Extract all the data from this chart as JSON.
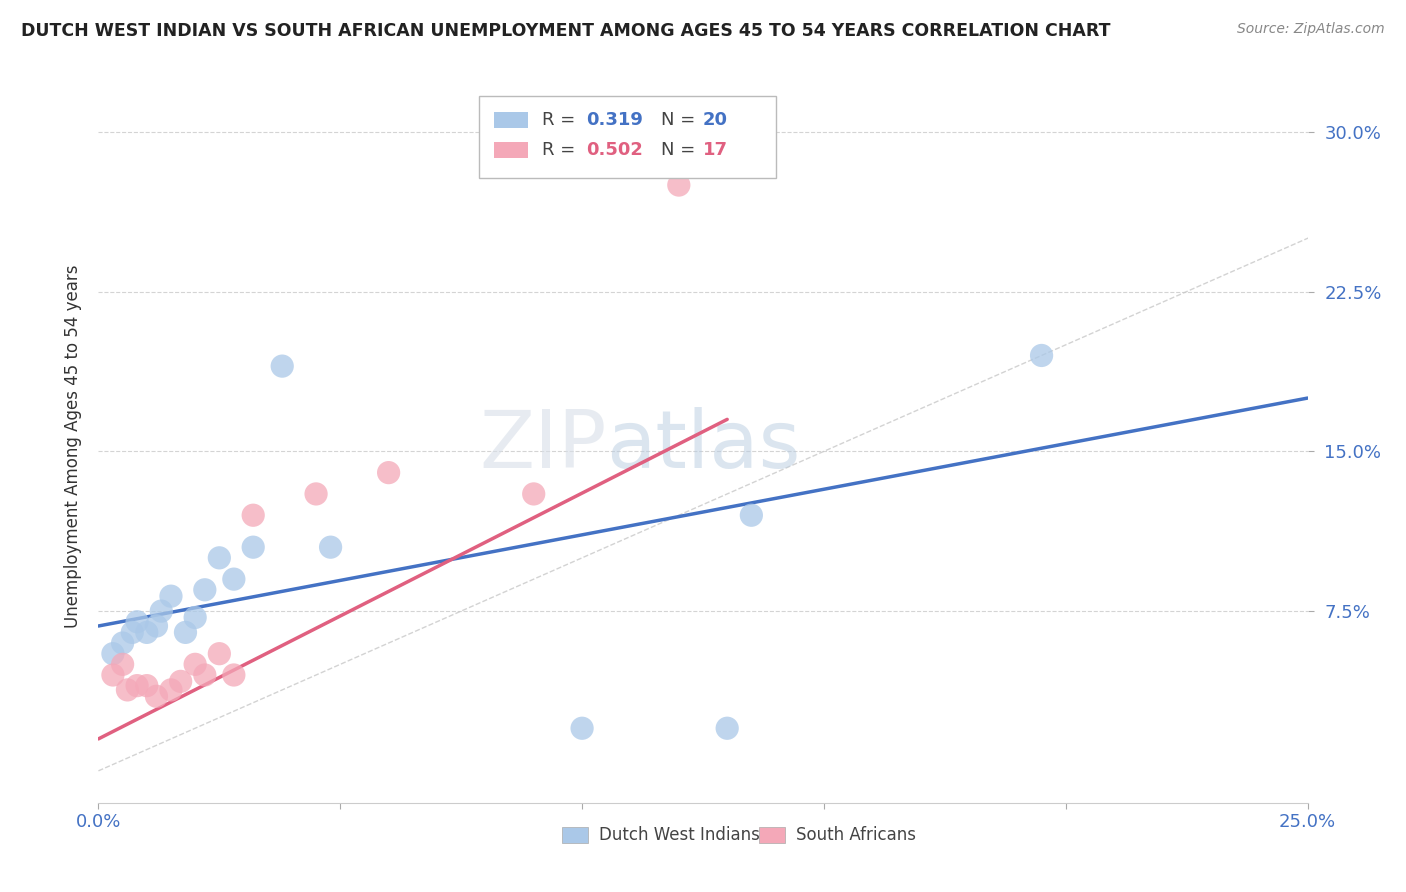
{
  "title": "DUTCH WEST INDIAN VS SOUTH AFRICAN UNEMPLOYMENT AMONG AGES 45 TO 54 YEARS CORRELATION CHART",
  "source": "Source: ZipAtlas.com",
  "ylabel": "Unemployment Among Ages 45 to 54 years",
  "xlim": [
    0.0,
    0.25
  ],
  "ylim": [
    -0.015,
    0.32
  ],
  "xticks": [
    0.0,
    0.25
  ],
  "xtick_labels": [
    "0.0%",
    "25.0%"
  ],
  "yticks": [
    0.075,
    0.15,
    0.225,
    0.3
  ],
  "ytick_labels": [
    "7.5%",
    "15.0%",
    "22.5%",
    "30.0%"
  ],
  "legend_bottom": [
    "Dutch West Indians",
    "South Africans"
  ],
  "blue_r": "0.319",
  "blue_n": "20",
  "pink_r": "0.502",
  "pink_n": "17",
  "blue_scatter_x": [
    0.003,
    0.005,
    0.007,
    0.008,
    0.01,
    0.012,
    0.013,
    0.015,
    0.018,
    0.02,
    0.022,
    0.025,
    0.028,
    0.032,
    0.038,
    0.048,
    0.1,
    0.13,
    0.135,
    0.195
  ],
  "blue_scatter_y": [
    0.055,
    0.06,
    0.065,
    0.07,
    0.065,
    0.068,
    0.075,
    0.082,
    0.065,
    0.072,
    0.085,
    0.1,
    0.09,
    0.105,
    0.19,
    0.105,
    0.02,
    0.02,
    0.12,
    0.195
  ],
  "pink_scatter_x": [
    0.003,
    0.005,
    0.006,
    0.008,
    0.01,
    0.012,
    0.015,
    0.017,
    0.02,
    0.022,
    0.025,
    0.028,
    0.032,
    0.045,
    0.06,
    0.09,
    0.12
  ],
  "pink_scatter_y": [
    0.045,
    0.05,
    0.038,
    0.04,
    0.04,
    0.035,
    0.038,
    0.042,
    0.05,
    0.045,
    0.055,
    0.045,
    0.12,
    0.13,
    0.14,
    0.13,
    0.275
  ],
  "blue_line_x": [
    0.0,
    0.25
  ],
  "blue_line_y": [
    0.068,
    0.175
  ],
  "pink_line_x": [
    0.0,
    0.13
  ],
  "pink_line_y": [
    0.015,
    0.165
  ],
  "ref_line_x": [
    0.0,
    0.32
  ],
  "ref_line_y": [
    0.0,
    0.32
  ],
  "watermark": "ZIPatlas",
  "blue_color": "#aac8e8",
  "pink_color": "#f4a8b8",
  "blue_line_color": "#4472c4",
  "pink_line_color": "#e06080",
  "ref_line_color": "#c8c8c8",
  "title_color": "#222222",
  "axis_color": "#4472c4",
  "grid_color": "#d0d0d0",
  "background_color": "#ffffff"
}
